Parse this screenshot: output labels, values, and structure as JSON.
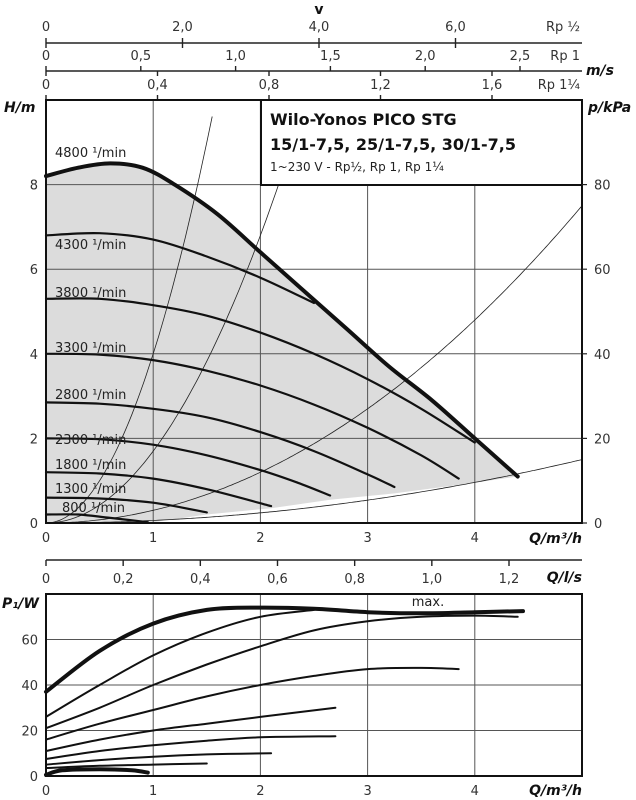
{
  "chart_data": [
    {
      "type": "line",
      "title": "Wilo-Yonos PICO STG",
      "subtitle": "15/1-7,5, 25/1-7,5, 30/1-7,5",
      "subtitle2": "1~230 V - Rp½, Rp 1, Rp 1¼",
      "xlabel": "Q/m³/h",
      "ylabel": "H/m",
      "y2label": "p/kPa",
      "xlim": [
        0,
        5
      ],
      "ylim": [
        0,
        10
      ],
      "y2lim": [
        0,
        100
      ],
      "grid": true,
      "xticks": [
        "0",
        "1",
        "2",
        "3",
        "4"
      ],
      "yticks": [
        "0",
        "2",
        "4",
        "6",
        "8"
      ],
      "y2ticks": [
        "0",
        "20",
        "40",
        "60",
        "80"
      ],
      "velocity_axes": {
        "label": "v",
        "unit": "m/s",
        "rows": [
          {
            "pipe": "Rp ½",
            "ticks": [
              "0",
              "2,0",
              "4,0",
              "6,0"
            ],
            "values": [
              0,
              2,
              4,
              6
            ]
          },
          {
            "pipe": "Rp 1",
            "ticks": [
              "0",
              "0,5",
              "1,0",
              "1,5",
              "2,0",
              "2,5"
            ],
            "values": [
              0,
              0.5,
              1.0,
              1.5,
              2.0,
              2.5
            ]
          },
          {
            "pipe": "Rp 1¼",
            "ticks": [
              "0",
              "0,4",
              "0,8",
              "1,2",
              "1,6"
            ],
            "values": [
              0,
              0.4,
              0.8,
              1.2,
              1.6
            ]
          }
        ]
      },
      "series": [
        {
          "name": "4800 ¹/min",
          "max": true,
          "x": [
            0,
            0.3,
            0.6,
            0.9,
            1.2,
            1.6,
            2.0,
            2.4,
            2.8,
            3.2,
            3.6,
            4.0,
            4.4
          ],
          "y": [
            8.2,
            8.4,
            8.5,
            8.4,
            8.0,
            7.3,
            6.4,
            5.5,
            4.6,
            3.7,
            2.9,
            2.0,
            1.1
          ]
        },
        {
          "name": "4300 ¹/min",
          "x": [
            0,
            0.5,
            1.0,
            1.5,
            2.0,
            2.5
          ],
          "y": [
            6.8,
            6.85,
            6.7,
            6.3,
            5.8,
            5.2
          ]
        },
        {
          "name": "3800 ¹/min",
          "x": [
            0,
            0.5,
            1.0,
            1.5,
            2.0,
            2.5,
            3.0,
            3.5,
            4.0
          ],
          "y": [
            5.3,
            5.3,
            5.15,
            4.9,
            4.5,
            4.0,
            3.4,
            2.7,
            1.9
          ]
        },
        {
          "name": "3300 ¹/min",
          "x": [
            0,
            0.5,
            1.0,
            1.5,
            2.0,
            2.5,
            3.0,
            3.5,
            3.85
          ],
          "y": [
            4.0,
            3.98,
            3.85,
            3.6,
            3.25,
            2.8,
            2.25,
            1.6,
            1.05
          ]
        },
        {
          "name": "2800 ¹/min",
          "x": [
            0,
            0.5,
            1.0,
            1.5,
            2.0,
            2.5,
            3.0,
            3.25
          ],
          "y": [
            2.85,
            2.82,
            2.7,
            2.5,
            2.15,
            1.7,
            1.15,
            0.85
          ]
        },
        {
          "name": "2300 ¹/min",
          "x": [
            0,
            0.5,
            1.0,
            1.5,
            2.0,
            2.35,
            2.65
          ],
          "y": [
            2.0,
            1.98,
            1.85,
            1.6,
            1.25,
            0.95,
            0.65
          ]
        },
        {
          "name": "1800 ¹/min",
          "x": [
            0,
            0.5,
            1.0,
            1.5,
            2.1
          ],
          "y": [
            1.2,
            1.17,
            1.05,
            0.8,
            0.4
          ]
        },
        {
          "name": "1300 ¹/min",
          "x": [
            0,
            0.5,
            1.0,
            1.5
          ],
          "y": [
            0.6,
            0.58,
            0.48,
            0.25
          ]
        },
        {
          "name": "800 ¹/min",
          "x": [
            0,
            0.3,
            0.6,
            0.95
          ],
          "y": [
            0.2,
            0.2,
            0.12,
            0.02
          ]
        }
      ],
      "system_curves": [
        {
          "name": "system-curve-1",
          "k": 4.0
        },
        {
          "name": "system-curve-2",
          "k": 1.7
        },
        {
          "name": "system-curve-3",
          "k": 0.3
        },
        {
          "name": "system-curve-4",
          "k": 0.06
        }
      ]
    },
    {
      "type": "line",
      "xlabel": "Q/m³/h",
      "x2label": "Q/l/s",
      "ylabel": "P₁/W",
      "xlim": [
        0,
        5
      ],
      "ylim": [
        0,
        80
      ],
      "grid": true,
      "xticks": [
        "0",
        "1",
        "2",
        "3",
        "4"
      ],
      "x2ticks": [
        "0",
        "0,2",
        "0,4",
        "0,6",
        "0,8",
        "1,0",
        "1,2"
      ],
      "x2values": [
        0,
        0.2,
        0.4,
        0.6,
        0.8,
        1.0,
        1.2
      ],
      "yticks": [
        "0",
        "20",
        "40",
        "60"
      ],
      "annotation": "max.",
      "series": [
        {
          "name": "4800 ¹/min",
          "max": true,
          "x": [
            0,
            0.5,
            1.0,
            1.5,
            2.0,
            2.5,
            3.0,
            3.5,
            4.0,
            4.45
          ],
          "y": [
            37,
            55,
            67,
            73,
            74,
            73.5,
            72,
            71.5,
            72,
            72.5
          ]
        },
        {
          "name": "4300 ¹/min",
          "x": [
            0,
            0.5,
            1.0,
            1.5,
            2.0,
            2.5
          ],
          "y": [
            26,
            40,
            53,
            63,
            70,
            73
          ]
        },
        {
          "name": "3800 ¹/min",
          "x": [
            0,
            0.5,
            1.0,
            1.5,
            2.0,
            2.5,
            3.0,
            3.5,
            4.0,
            4.4
          ],
          "y": [
            21,
            30,
            40,
            49,
            57,
            64,
            68,
            70,
            70.5,
            70
          ]
        },
        {
          "name": "3300 ¹/min",
          "x": [
            0,
            0.5,
            1.0,
            1.5,
            2.0,
            2.5,
            3.0,
            3.5,
            3.85
          ],
          "y": [
            16,
            23,
            29,
            35,
            40,
            44,
            47,
            47.5,
            47
          ]
        },
        {
          "name": "2800 ¹/min",
          "x": [
            0,
            0.5,
            1.0,
            1.5,
            2.0,
            2.7
          ],
          "y": [
            11,
            16,
            20,
            23,
            26,
            30
          ]
        },
        {
          "name": "2300 ¹/min",
          "x": [
            0,
            0.5,
            1.0,
            1.5,
            2.0,
            2.7
          ],
          "y": [
            7.5,
            11,
            13.5,
            15.5,
            17,
            17.5
          ]
        },
        {
          "name": "1800 ¹/min",
          "x": [
            0,
            0.5,
            1.0,
            1.5,
            2.1
          ],
          "y": [
            5,
            7,
            8.5,
            9.5,
            10
          ]
        },
        {
          "name": "1300 ¹/min",
          "x": [
            0,
            0.5,
            1.0,
            1.5
          ],
          "y": [
            3.5,
            4.5,
            5,
            5.5
          ]
        },
        {
          "name": "800 ¹/min",
          "x": [
            0,
            0.15,
            0.5,
            0.8,
            0.95
          ],
          "y": [
            0.5,
            2.5,
            3,
            2.5,
            1.5
          ]
        }
      ]
    }
  ],
  "colors": {
    "region_fill": "#dcdcdc",
    "curve": "#111111",
    "grid": "#555555"
  }
}
